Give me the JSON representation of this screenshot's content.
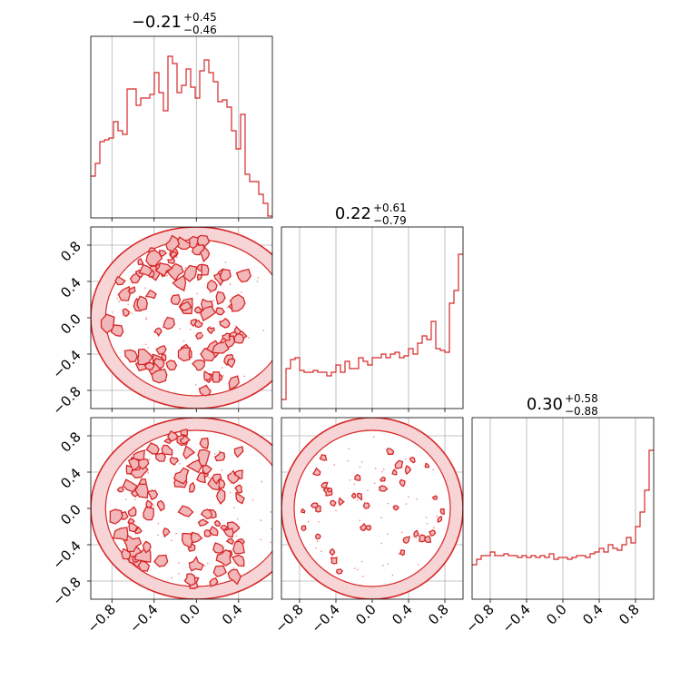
{
  "chart_data": {
    "type": "corner",
    "color": "#d62728",
    "axis_range": [
      -1.0,
      1.0
    ],
    "tick_values": [
      -0.8,
      -0.4,
      0.0,
      0.4,
      0.8
    ],
    "tick_labels": [
      "−0.8",
      "−0.4",
      "0.0",
      "0.4",
      "0.8"
    ],
    "bottom_tick_labels_col0": [
      "−0.8",
      "−0.4",
      "0.0",
      "0.4"
    ],
    "grid": true,
    "parameters": [
      {
        "median": "0.21",
        "sign": "−",
        "plus": "+0.45",
        "minus": "−0.46",
        "range": [
          -1.0,
          0.72
        ]
      },
      {
        "median": "0.22",
        "sign": "",
        "plus": "+0.61",
        "minus": "−0.79",
        "range": [
          -1.0,
          1.0
        ]
      },
      {
        "median": "0.30",
        "sign": "",
        "plus": "+0.58",
        "minus": "−0.88",
        "range": [
          -1.0,
          1.0
        ]
      }
    ],
    "histograms": [
      {
        "bins": 40,
        "values": [
          0.23,
          0.3,
          0.42,
          0.43,
          0.44,
          0.53,
          0.48,
          0.46,
          0.71,
          0.71,
          0.62,
          0.66,
          0.66,
          0.68,
          0.8,
          0.69,
          0.59,
          0.89,
          0.85,
          0.69,
          0.73,
          0.82,
          0.72,
          0.66,
          0.81,
          0.87,
          0.8,
          0.75,
          0.64,
          0.65,
          0.61,
          0.48,
          0.38,
          0.57,
          0.24,
          0.2,
          0.2,
          0.13,
          0.08,
          0.01
        ]
      },
      {
        "bins": 40,
        "values": [
          0.05,
          0.22,
          0.27,
          0.28,
          0.21,
          0.2,
          0.2,
          0.21,
          0.2,
          0.2,
          0.18,
          0.2,
          0.24,
          0.2,
          0.26,
          0.22,
          0.22,
          0.28,
          0.26,
          0.24,
          0.28,
          0.28,
          0.3,
          0.28,
          0.3,
          0.31,
          0.28,
          0.29,
          0.33,
          0.3,
          0.36,
          0.4,
          0.38,
          0.48,
          0.33,
          0.32,
          0.31,
          0.58,
          0.65,
          0.85
        ]
      },
      {
        "bins": 40,
        "values": [
          0.19,
          0.22,
          0.24,
          0.24,
          0.26,
          0.24,
          0.24,
          0.25,
          0.24,
          0.24,
          0.23,
          0.24,
          0.23,
          0.24,
          0.23,
          0.24,
          0.23,
          0.25,
          0.22,
          0.23,
          0.23,
          0.22,
          0.23,
          0.24,
          0.24,
          0.23,
          0.25,
          0.26,
          0.28,
          0.26,
          0.3,
          0.28,
          0.27,
          0.3,
          0.34,
          0.31,
          0.4,
          0.48,
          0.6,
          0.82
        ]
      }
    ]
  }
}
